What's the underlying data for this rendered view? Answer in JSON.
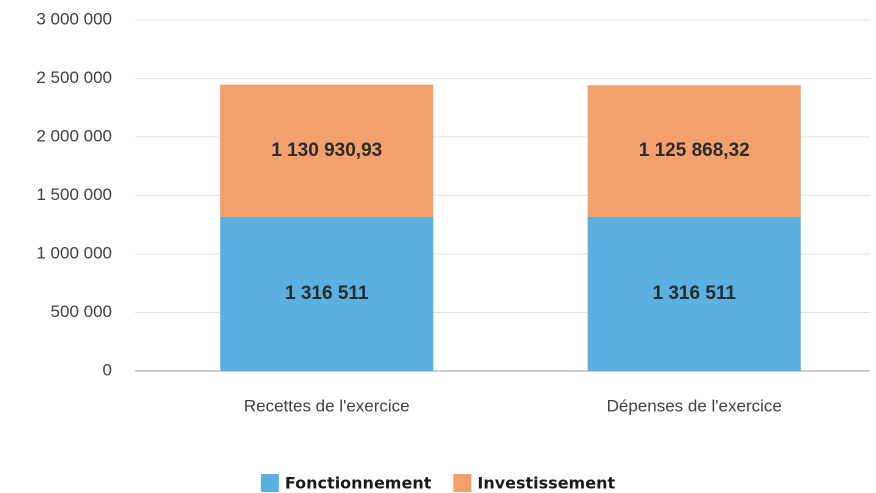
{
  "chart_data": {
    "type": "bar",
    "stacked": true,
    "categories": [
      "Recettes de l'exercice",
      "Dépenses de l'exercice"
    ],
    "series": [
      {
        "name": "Fonctionnement",
        "color": "#5ab1e1",
        "values": [
          1316511,
          1316511
        ],
        "value_labels": [
          "1 316 511",
          "1 316 511"
        ]
      },
      {
        "name": "Investissement",
        "color": "#f4a06c",
        "values": [
          1130930.93,
          1125868.32
        ],
        "value_labels": [
          "1 130 930,93",
          "1 125 868,32"
        ]
      }
    ],
    "ylim": [
      0,
      3000000
    ],
    "yticks": [
      0,
      {
        "value": 500000,
        "label": "500 000"
      },
      {
        "value": 1000000,
        "label": "1 000 000"
      },
      {
        "value": 1500000,
        "label": "1 500 000"
      },
      {
        "value": 2000000,
        "label": "2 000 000"
      },
      {
        "value": 2500000,
        "label": "2 500 000"
      },
      {
        "value": 3000000,
        "label": "3 000 000"
      }
    ],
    "grid": true,
    "legend": "bottom"
  }
}
